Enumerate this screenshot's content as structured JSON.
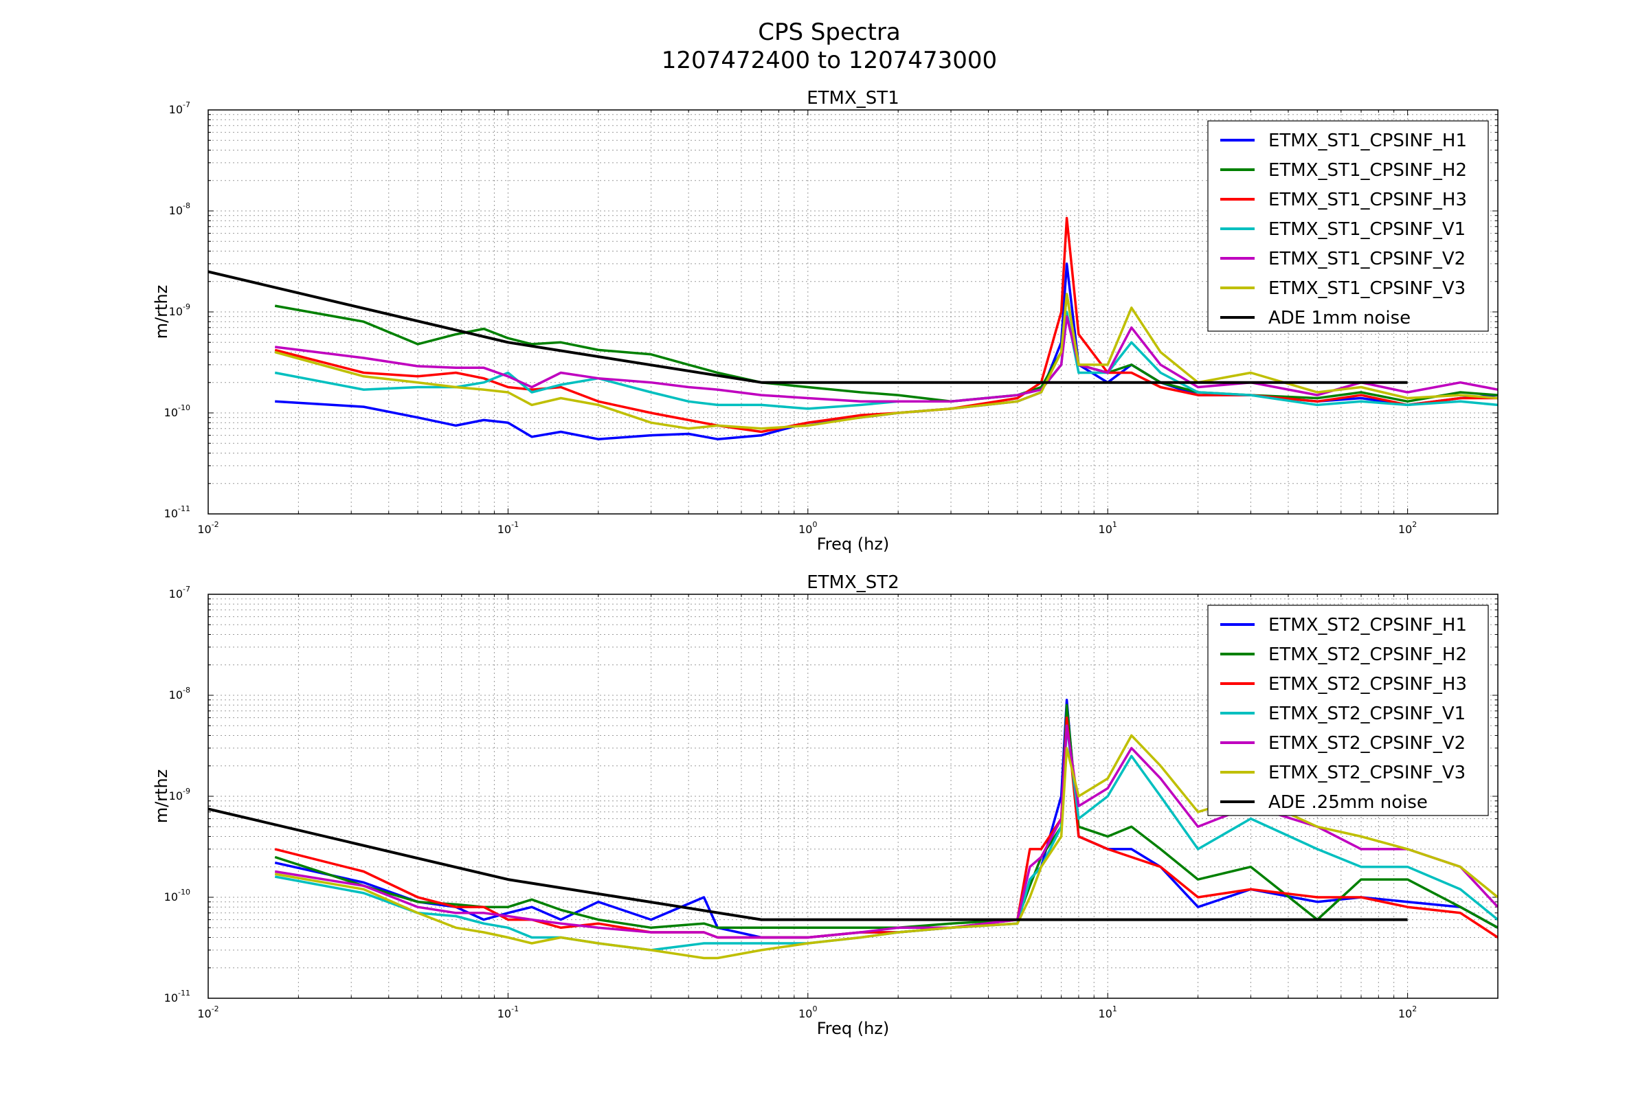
{
  "figure": {
    "title_line1": "CPS Spectra",
    "title_line2": "1207472400 to 1207473000"
  },
  "colors": {
    "H1": "#0000ff",
    "H2": "#008000",
    "H3": "#ff0000",
    "V1": "#00bfbf",
    "V2": "#bf00bf",
    "V3": "#bfbf00",
    "ADE": "#000000"
  },
  "chart_data": [
    {
      "type": "line",
      "title": "ETMX_ST1",
      "xlabel": "Freq (hz)",
      "ylabel": "m/rthz",
      "x_scale": "log",
      "y_scale": "log",
      "xlim": [
        0.01,
        200
      ],
      "ylim": [
        1e-11,
        1e-07
      ],
      "grid": true,
      "legend": "top-right",
      "x_ticks": [
        {
          "base": "10",
          "exp": "-2",
          "value": 0.01
        },
        {
          "base": "10",
          "exp": "-1",
          "value": 0.1
        },
        {
          "base": "10",
          "exp": "0",
          "value": 1
        },
        {
          "base": "10",
          "exp": "1",
          "value": 10
        },
        {
          "base": "10",
          "exp": "2",
          "value": 100
        }
      ],
      "y_ticks": [
        {
          "base": "10",
          "exp": "-11",
          "value": 1e-11
        },
        {
          "base": "10",
          "exp": "-10",
          "value": 1e-10
        },
        {
          "base": "10",
          "exp": "-9",
          "value": 1e-09
        },
        {
          "base": "10",
          "exp": "-8",
          "value": 1e-08
        },
        {
          "base": "10",
          "exp": "-7",
          "value": 1e-07
        }
      ],
      "series": [
        {
          "name": "ETMX_ST1_CPSINF_H1",
          "color_key": "H1",
          "x": [
            0.0167,
            0.033,
            0.05,
            0.067,
            0.083,
            0.1,
            0.12,
            0.15,
            0.2,
            0.3,
            0.4,
            0.5,
            0.7,
            1,
            1.5,
            2,
            3,
            5,
            6,
            7,
            7.3,
            8,
            10,
            12,
            15,
            20,
            30,
            50,
            70,
            100,
            150,
            200
          ],
          "y": [
            1.3e-10,
            1.15e-10,
            9e-11,
            7.5e-11,
            8.5e-11,
            8e-11,
            5.8e-11,
            6.5e-11,
            5.5e-11,
            6e-11,
            6.2e-11,
            5.5e-11,
            6e-11,
            8e-11,
            9e-11,
            1e-10,
            1.1e-10,
            1.3e-10,
            1.6e-10,
            5e-10,
            3e-09,
            3e-10,
            2e-10,
            3e-10,
            2e-10,
            1.5e-10,
            1.5e-10,
            1.3e-10,
            1.4e-10,
            1.2e-10,
            1.4e-10,
            1.5e-10
          ]
        },
        {
          "name": "ETMX_ST1_CPSINF_H2",
          "color_key": "H2",
          "x": [
            0.0167,
            0.033,
            0.05,
            0.067,
            0.083,
            0.1,
            0.12,
            0.15,
            0.2,
            0.3,
            0.4,
            0.5,
            0.7,
            1,
            1.5,
            2,
            3,
            5,
            6,
            7,
            7.3,
            8,
            10,
            12,
            15,
            20,
            30,
            50,
            70,
            100,
            150,
            200
          ],
          "y": [
            1.15e-09,
            8e-10,
            4.8e-10,
            6e-10,
            6.8e-10,
            5.5e-10,
            4.8e-10,
            5e-10,
            4.2e-10,
            3.8e-10,
            3e-10,
            2.5e-10,
            2e-10,
            1.8e-10,
            1.6e-10,
            1.5e-10,
            1.3e-10,
            1.5e-10,
            1.8e-10,
            4e-10,
            1.5e-09,
            3e-10,
            2.5e-10,
            3e-10,
            2e-10,
            1.6e-10,
            1.5e-10,
            1.4e-10,
            1.6e-10,
            1.3e-10,
            1.6e-10,
            1.5e-10
          ]
        },
        {
          "name": "ETMX_ST1_CPSINF_H3",
          "color_key": "H3",
          "x": [
            0.0167,
            0.033,
            0.05,
            0.067,
            0.083,
            0.1,
            0.12,
            0.15,
            0.2,
            0.3,
            0.4,
            0.5,
            0.7,
            1,
            1.5,
            2,
            3,
            5,
            6,
            7,
            7.3,
            8,
            10,
            12,
            15,
            20,
            30,
            50,
            70,
            100,
            150,
            200
          ],
          "y": [
            4.2e-10,
            2.5e-10,
            2.3e-10,
            2.5e-10,
            2.2e-10,
            1.8e-10,
            1.7e-10,
            1.8e-10,
            1.3e-10,
            1e-10,
            8.5e-11,
            7.5e-11,
            6.5e-11,
            8e-11,
            9.5e-11,
            1e-10,
            1.1e-10,
            1.4e-10,
            2e-10,
            1e-09,
            8.5e-09,
            6e-10,
            2.5e-10,
            2.5e-10,
            1.8e-10,
            1.5e-10,
            1.5e-10,
            1.3e-10,
            1.5e-10,
            1.2e-10,
            1.4e-10,
            1.4e-10
          ]
        },
        {
          "name": "ETMX_ST1_CPSINF_V1",
          "color_key": "V1",
          "x": [
            0.0167,
            0.033,
            0.05,
            0.067,
            0.083,
            0.1,
            0.12,
            0.15,
            0.2,
            0.3,
            0.4,
            0.5,
            0.7,
            1,
            1.5,
            2,
            3,
            5,
            6,
            7,
            7.3,
            8,
            10,
            12,
            15,
            20,
            30,
            50,
            70,
            100,
            150,
            200
          ],
          "y": [
            2.5e-10,
            1.7e-10,
            1.8e-10,
            1.8e-10,
            2e-10,
            2.5e-10,
            1.6e-10,
            1.9e-10,
            2.2e-10,
            1.6e-10,
            1.3e-10,
            1.2e-10,
            1.2e-10,
            1.1e-10,
            1.2e-10,
            1.3e-10,
            1.3e-10,
            1.5e-10,
            1.7e-10,
            3e-10,
            1e-09,
            2.5e-10,
            2.5e-10,
            5e-10,
            2.5e-10,
            1.6e-10,
            1.5e-10,
            1.2e-10,
            1.3e-10,
            1.2e-10,
            1.3e-10,
            1.2e-10
          ]
        },
        {
          "name": "ETMX_ST1_CPSINF_V2",
          "color_key": "V2",
          "x": [
            0.0167,
            0.033,
            0.05,
            0.067,
            0.083,
            0.1,
            0.12,
            0.15,
            0.2,
            0.3,
            0.4,
            0.5,
            0.7,
            1,
            1.5,
            2,
            3,
            5,
            6,
            7,
            7.3,
            8,
            10,
            12,
            15,
            20,
            30,
            50,
            70,
            100,
            150,
            200
          ],
          "y": [
            4.5e-10,
            3.5e-10,
            2.9e-10,
            2.8e-10,
            2.8e-10,
            2.3e-10,
            1.8e-10,
            2.5e-10,
            2.2e-10,
            2e-10,
            1.8e-10,
            1.7e-10,
            1.5e-10,
            1.4e-10,
            1.3e-10,
            1.3e-10,
            1.3e-10,
            1.5e-10,
            1.7e-10,
            3e-10,
            9e-10,
            3e-10,
            2.5e-10,
            7e-10,
            3e-10,
            1.8e-10,
            2e-10,
            1.5e-10,
            2e-10,
            1.6e-10,
            2e-10,
            1.7e-10
          ]
        },
        {
          "name": "ETMX_ST1_CPSINF_V3",
          "color_key": "V3",
          "x": [
            0.0167,
            0.033,
            0.05,
            0.067,
            0.083,
            0.1,
            0.12,
            0.15,
            0.2,
            0.3,
            0.4,
            0.5,
            0.7,
            1,
            1.5,
            2,
            3,
            5,
            6,
            7,
            7.3,
            8,
            10,
            12,
            15,
            20,
            30,
            50,
            70,
            100,
            150,
            200
          ],
          "y": [
            4e-10,
            2.3e-10,
            2e-10,
            1.8e-10,
            1.7e-10,
            1.6e-10,
            1.2e-10,
            1.4e-10,
            1.2e-10,
            8e-11,
            7e-11,
            7.5e-11,
            7e-11,
            7.5e-11,
            9e-11,
            1e-10,
            1.1e-10,
            1.3e-10,
            1.6e-10,
            4e-10,
            1.5e-09,
            3e-10,
            3e-10,
            1.1e-09,
            4e-10,
            2e-10,
            2.5e-10,
            1.6e-10,
            1.8e-10,
            1.4e-10,
            1.5e-10,
            1.4e-10
          ]
        },
        {
          "name": "ADE 1mm noise",
          "color_key": "ADE",
          "x": [
            0.01,
            0.1,
            0.7,
            100
          ],
          "y": [
            2.5e-09,
            5e-10,
            2e-10,
            2e-10
          ]
        }
      ]
    },
    {
      "type": "line",
      "title": "ETMX_ST2",
      "xlabel": "Freq (hz)",
      "ylabel": "m/rthz",
      "x_scale": "log",
      "y_scale": "log",
      "xlim": [
        0.01,
        200
      ],
      "ylim": [
        1e-11,
        1e-07
      ],
      "grid": true,
      "legend": "top-right",
      "x_ticks": [
        {
          "base": "10",
          "exp": "-2",
          "value": 0.01
        },
        {
          "base": "10",
          "exp": "-1",
          "value": 0.1
        },
        {
          "base": "10",
          "exp": "0",
          "value": 1
        },
        {
          "base": "10",
          "exp": "1",
          "value": 10
        },
        {
          "base": "10",
          "exp": "2",
          "value": 100
        }
      ],
      "y_ticks": [
        {
          "base": "10",
          "exp": "-11",
          "value": 1e-11
        },
        {
          "base": "10",
          "exp": "-10",
          "value": 1e-10
        },
        {
          "base": "10",
          "exp": "-9",
          "value": 1e-09
        },
        {
          "base": "10",
          "exp": "-8",
          "value": 1e-08
        },
        {
          "base": "10",
          "exp": "-7",
          "value": 1e-07
        }
      ],
      "series": [
        {
          "name": "ETMX_ST2_CPSINF_H1",
          "color_key": "H1",
          "x": [
            0.0167,
            0.033,
            0.05,
            0.067,
            0.083,
            0.1,
            0.12,
            0.15,
            0.2,
            0.3,
            0.45,
            0.5,
            0.7,
            1,
            1.5,
            2,
            3,
            5,
            5.5,
            6,
            7,
            7.3,
            8,
            10,
            12,
            15,
            20,
            30,
            50,
            70,
            100,
            150,
            200
          ],
          "y": [
            2.2e-10,
            1.4e-10,
            9e-11,
            8e-11,
            6e-11,
            7e-11,
            8e-11,
            6e-11,
            9e-11,
            6e-11,
            1e-10,
            5e-11,
            4e-11,
            4e-11,
            4.5e-11,
            4.5e-11,
            5e-11,
            5.5e-11,
            1.5e-10,
            2e-10,
            1e-09,
            9e-09,
            4e-10,
            3e-10,
            3e-10,
            2e-10,
            8e-11,
            1.2e-10,
            9e-11,
            1e-10,
            9e-11,
            8e-11,
            5e-11
          ]
        },
        {
          "name": "ETMX_ST2_CPSINF_H2",
          "color_key": "H2",
          "x": [
            0.0167,
            0.033,
            0.05,
            0.067,
            0.083,
            0.1,
            0.12,
            0.15,
            0.2,
            0.3,
            0.45,
            0.5,
            0.7,
            1,
            1.5,
            2,
            3,
            5,
            5.5,
            6,
            7,
            7.3,
            8,
            10,
            12,
            15,
            20,
            30,
            50,
            70,
            100,
            150,
            200
          ],
          "y": [
            2.5e-10,
            1.3e-10,
            9e-11,
            8.5e-11,
            8e-11,
            8e-11,
            9.5e-11,
            7.5e-11,
            6e-11,
            5e-11,
            5.5e-11,
            5e-11,
            5e-11,
            5e-11,
            5e-11,
            5e-11,
            5.5e-11,
            6e-11,
            1.3e-10,
            2.5e-10,
            5e-10,
            8e-09,
            5e-10,
            4e-10,
            5e-10,
            3e-10,
            1.5e-10,
            2e-10,
            6e-11,
            1.5e-10,
            1.5e-10,
            8e-11,
            5e-11
          ]
        },
        {
          "name": "ETMX_ST2_CPSINF_H3",
          "color_key": "H3",
          "x": [
            0.0167,
            0.033,
            0.05,
            0.067,
            0.083,
            0.1,
            0.12,
            0.15,
            0.2,
            0.3,
            0.45,
            0.5,
            0.7,
            1,
            1.5,
            2,
            3,
            5,
            5.5,
            6,
            7,
            7.3,
            8,
            10,
            12,
            15,
            20,
            30,
            50,
            70,
            100,
            150,
            200
          ],
          "y": [
            3e-10,
            1.8e-10,
            1e-10,
            8e-11,
            8e-11,
            6e-11,
            6e-11,
            5e-11,
            5.5e-11,
            4.5e-11,
            4.5e-11,
            4e-11,
            4e-11,
            4e-11,
            4.5e-11,
            4.5e-11,
            5e-11,
            6e-11,
            3e-10,
            3e-10,
            6e-10,
            6e-09,
            4e-10,
            3e-10,
            2.5e-10,
            2e-10,
            1e-10,
            1.2e-10,
            1e-10,
            1e-10,
            8e-11,
            7e-11,
            4e-11
          ]
        },
        {
          "name": "ETMX_ST2_CPSINF_V1",
          "color_key": "V1",
          "x": [
            0.0167,
            0.033,
            0.05,
            0.067,
            0.083,
            0.1,
            0.12,
            0.15,
            0.2,
            0.3,
            0.45,
            0.5,
            0.7,
            1,
            1.5,
            2,
            3,
            5,
            5.5,
            6,
            7,
            7.3,
            8,
            10,
            12,
            15,
            20,
            30,
            50,
            70,
            100,
            150,
            200
          ],
          "y": [
            1.6e-10,
            1.1e-10,
            7e-11,
            6.5e-11,
            5.5e-11,
            5e-11,
            4e-11,
            4e-11,
            3.5e-11,
            3e-11,
            3.5e-11,
            3.5e-11,
            3.5e-11,
            3.5e-11,
            4e-11,
            4.5e-11,
            5e-11,
            5.5e-11,
            1.5e-10,
            2e-10,
            5e-10,
            5e-09,
            6e-10,
            1e-09,
            2.5e-09,
            1e-09,
            3e-10,
            6e-10,
            3e-10,
            2e-10,
            2e-10,
            1.2e-10,
            6e-11
          ]
        },
        {
          "name": "ETMX_ST2_CPSINF_V2",
          "color_key": "V2",
          "x": [
            0.0167,
            0.033,
            0.05,
            0.067,
            0.083,
            0.1,
            0.12,
            0.15,
            0.2,
            0.3,
            0.45,
            0.5,
            0.7,
            1,
            1.5,
            2,
            3,
            5,
            5.5,
            6,
            7,
            7.3,
            8,
            10,
            12,
            15,
            20,
            30,
            50,
            70,
            100,
            150,
            200
          ],
          "y": [
            1.8e-10,
            1.3e-10,
            8e-11,
            7e-11,
            7e-11,
            6.5e-11,
            6e-11,
            5.5e-11,
            5e-11,
            4.5e-11,
            4.5e-11,
            4e-11,
            4e-11,
            4e-11,
            4.5e-11,
            5e-11,
            5e-11,
            6e-11,
            2e-10,
            2.5e-10,
            6e-10,
            5e-09,
            8e-10,
            1.2e-09,
            3e-09,
            1.5e-09,
            5e-10,
            8e-10,
            5e-10,
            3e-10,
            3e-10,
            2e-10,
            8e-11
          ]
        },
        {
          "name": "ETMX_ST2_CPSINF_V3",
          "color_key": "V3",
          "x": [
            0.0167,
            0.033,
            0.05,
            0.067,
            0.083,
            0.1,
            0.12,
            0.15,
            0.2,
            0.3,
            0.45,
            0.5,
            0.7,
            1,
            1.5,
            2,
            3,
            5,
            5.5,
            6,
            7,
            7.3,
            8,
            10,
            12,
            15,
            20,
            30,
            50,
            70,
            100,
            150,
            200
          ],
          "y": [
            1.7e-10,
            1.2e-10,
            7e-11,
            5e-11,
            4.5e-11,
            4e-11,
            3.5e-11,
            4e-11,
            3.5e-11,
            3e-11,
            2.5e-11,
            2.5e-11,
            3e-11,
            3.5e-11,
            4e-11,
            4.5e-11,
            5e-11,
            5.5e-11,
            1e-10,
            2e-10,
            4e-10,
            3e-09,
            1e-09,
            1.5e-09,
            4e-09,
            2e-09,
            7e-10,
            1e-09,
            5e-10,
            4e-10,
            3e-10,
            2e-10,
            1e-10
          ]
        },
        {
          "name": "ADE .25mm noise",
          "color_key": "ADE",
          "x": [
            0.01,
            0.1,
            0.7,
            100
          ],
          "y": [
            7.5e-10,
            1.5e-10,
            6e-11,
            6e-11
          ]
        }
      ]
    }
  ]
}
